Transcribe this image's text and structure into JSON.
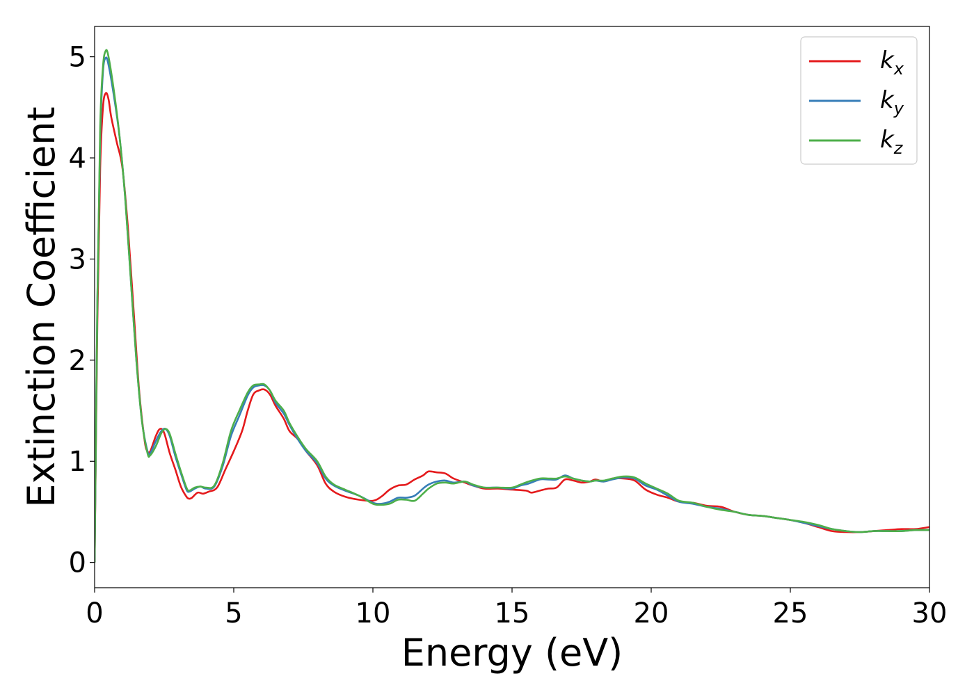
{
  "chart_data": {
    "type": "line",
    "xlabel": "Energy (eV)",
    "ylabel": "Extinction Coefficient",
    "xlim": [
      0,
      30
    ],
    "ylim": [
      -0.25,
      5.3
    ],
    "xticks": [
      0,
      5,
      10,
      15,
      20,
      25,
      30
    ],
    "yticks": [
      0,
      1,
      2,
      3,
      4,
      5
    ],
    "grid": false,
    "legend_position": "top-right",
    "series": [
      {
        "name": "k_x",
        "label_main": "k",
        "label_sub": "x",
        "color": "#e41a1c",
        "points": [
          [
            0,
            0
          ],
          [
            0.1,
            2.4
          ],
          [
            0.2,
            3.9
          ],
          [
            0.3,
            4.5
          ],
          [
            0.4,
            4.64
          ],
          [
            0.5,
            4.58
          ],
          [
            0.6,
            4.4
          ],
          [
            0.8,
            4.15
          ],
          [
            1.0,
            3.9
          ],
          [
            1.2,
            3.3
          ],
          [
            1.4,
            2.5
          ],
          [
            1.6,
            1.7
          ],
          [
            1.8,
            1.2
          ],
          [
            1.9,
            1.1
          ],
          [
            2.0,
            1.1
          ],
          [
            2.2,
            1.25
          ],
          [
            2.35,
            1.32
          ],
          [
            2.5,
            1.28
          ],
          [
            2.7,
            1.08
          ],
          [
            2.9,
            0.92
          ],
          [
            3.1,
            0.75
          ],
          [
            3.3,
            0.65
          ],
          [
            3.4,
            0.63
          ],
          [
            3.5,
            0.64
          ],
          [
            3.7,
            0.69
          ],
          [
            3.9,
            0.68
          ],
          [
            4.1,
            0.7
          ],
          [
            4.4,
            0.74
          ],
          [
            4.7,
            0.92
          ],
          [
            5.0,
            1.1
          ],
          [
            5.3,
            1.3
          ],
          [
            5.5,
            1.5
          ],
          [
            5.7,
            1.66
          ],
          [
            5.9,
            1.7
          ],
          [
            6.1,
            1.71
          ],
          [
            6.3,
            1.66
          ],
          [
            6.5,
            1.55
          ],
          [
            6.8,
            1.42
          ],
          [
            7.0,
            1.3
          ],
          [
            7.3,
            1.22
          ],
          [
            7.6,
            1.1
          ],
          [
            8.0,
            0.96
          ],
          [
            8.3,
            0.78
          ],
          [
            8.6,
            0.7
          ],
          [
            9.0,
            0.65
          ],
          [
            9.5,
            0.62
          ],
          [
            10.0,
            0.61
          ],
          [
            10.3,
            0.65
          ],
          [
            10.6,
            0.72
          ],
          [
            10.9,
            0.76
          ],
          [
            11.2,
            0.77
          ],
          [
            11.5,
            0.82
          ],
          [
            11.8,
            0.86
          ],
          [
            12.0,
            0.9
          ],
          [
            12.3,
            0.89
          ],
          [
            12.6,
            0.88
          ],
          [
            12.9,
            0.83
          ],
          [
            13.3,
            0.79
          ],
          [
            13.6,
            0.76
          ],
          [
            14.0,
            0.73
          ],
          [
            14.5,
            0.73
          ],
          [
            15.0,
            0.72
          ],
          [
            15.5,
            0.71
          ],
          [
            15.7,
            0.69
          ],
          [
            16.0,
            0.71
          ],
          [
            16.3,
            0.73
          ],
          [
            16.6,
            0.74
          ],
          [
            16.9,
            0.82
          ],
          [
            17.2,
            0.81
          ],
          [
            17.5,
            0.79
          ],
          [
            17.8,
            0.8
          ],
          [
            18.0,
            0.82
          ],
          [
            18.3,
            0.8
          ],
          [
            18.6,
            0.83
          ],
          [
            19.0,
            0.83
          ],
          [
            19.4,
            0.81
          ],
          [
            19.8,
            0.72
          ],
          [
            20.2,
            0.67
          ],
          [
            20.6,
            0.64
          ],
          [
            21.0,
            0.6
          ],
          [
            21.5,
            0.59
          ],
          [
            22.0,
            0.56
          ],
          [
            22.5,
            0.55
          ],
          [
            23.0,
            0.5
          ],
          [
            23.5,
            0.47
          ],
          [
            24.0,
            0.46
          ],
          [
            24.5,
            0.44
          ],
          [
            25.0,
            0.42
          ],
          [
            25.5,
            0.39
          ],
          [
            26.0,
            0.35
          ],
          [
            26.5,
            0.31
          ],
          [
            27.0,
            0.3
          ],
          [
            27.5,
            0.3
          ],
          [
            28.0,
            0.31
          ],
          [
            28.5,
            0.32
          ],
          [
            29.0,
            0.33
          ],
          [
            29.5,
            0.33
          ],
          [
            30.0,
            0.35
          ]
        ]
      },
      {
        "name": "k_y",
        "label_main": "k",
        "label_sub": "y",
        "color": "#377eb8",
        "points": [
          [
            0,
            0
          ],
          [
            0.1,
            2.6
          ],
          [
            0.2,
            4.2
          ],
          [
            0.3,
            4.85
          ],
          [
            0.4,
            4.99
          ],
          [
            0.5,
            4.92
          ],
          [
            0.7,
            4.6
          ],
          [
            0.9,
            4.2
          ],
          [
            1.1,
            3.6
          ],
          [
            1.3,
            2.8
          ],
          [
            1.5,
            2.0
          ],
          [
            1.7,
            1.4
          ],
          [
            1.9,
            1.1
          ],
          [
            2.0,
            1.08
          ],
          [
            2.2,
            1.2
          ],
          [
            2.4,
            1.3
          ],
          [
            2.55,
            1.32
          ],
          [
            2.7,
            1.25
          ],
          [
            2.9,
            1.05
          ],
          [
            3.1,
            0.88
          ],
          [
            3.3,
            0.72
          ],
          [
            3.4,
            0.7
          ],
          [
            3.6,
            0.73
          ],
          [
            3.8,
            0.75
          ],
          [
            4.0,
            0.73
          ],
          [
            4.3,
            0.75
          ],
          [
            4.6,
            0.95
          ],
          [
            4.9,
            1.25
          ],
          [
            5.2,
            1.45
          ],
          [
            5.5,
            1.65
          ],
          [
            5.7,
            1.73
          ],
          [
            5.9,
            1.75
          ],
          [
            6.1,
            1.75
          ],
          [
            6.3,
            1.7
          ],
          [
            6.5,
            1.58
          ],
          [
            6.8,
            1.47
          ],
          [
            7.0,
            1.36
          ],
          [
            7.3,
            1.22
          ],
          [
            7.6,
            1.1
          ],
          [
            8.0,
            0.98
          ],
          [
            8.3,
            0.83
          ],
          [
            8.6,
            0.76
          ],
          [
            9.0,
            0.71
          ],
          [
            9.5,
            0.66
          ],
          [
            10.0,
            0.59
          ],
          [
            10.3,
            0.58
          ],
          [
            10.6,
            0.6
          ],
          [
            10.9,
            0.64
          ],
          [
            11.2,
            0.64
          ],
          [
            11.5,
            0.66
          ],
          [
            11.8,
            0.73
          ],
          [
            12.0,
            0.77
          ],
          [
            12.3,
            0.8
          ],
          [
            12.6,
            0.81
          ],
          [
            12.9,
            0.79
          ],
          [
            13.3,
            0.8
          ],
          [
            13.6,
            0.76
          ],
          [
            14.0,
            0.74
          ],
          [
            14.5,
            0.74
          ],
          [
            15.0,
            0.73
          ],
          [
            15.3,
            0.76
          ],
          [
            15.6,
            0.78
          ],
          [
            16.0,
            0.82
          ],
          [
            16.3,
            0.82
          ],
          [
            16.6,
            0.82
          ],
          [
            16.9,
            0.86
          ],
          [
            17.2,
            0.83
          ],
          [
            17.5,
            0.81
          ],
          [
            17.8,
            0.8
          ],
          [
            18.0,
            0.81
          ],
          [
            18.3,
            0.8
          ],
          [
            18.6,
            0.82
          ],
          [
            19.0,
            0.84
          ],
          [
            19.4,
            0.83
          ],
          [
            19.8,
            0.76
          ],
          [
            20.2,
            0.72
          ],
          [
            20.6,
            0.66
          ],
          [
            21.0,
            0.6
          ],
          [
            21.5,
            0.58
          ],
          [
            22.0,
            0.55
          ],
          [
            22.5,
            0.53
          ],
          [
            23.0,
            0.5
          ],
          [
            23.5,
            0.47
          ],
          [
            24.0,
            0.46
          ],
          [
            24.5,
            0.44
          ],
          [
            25.0,
            0.42
          ],
          [
            25.5,
            0.39
          ],
          [
            26.0,
            0.36
          ],
          [
            26.5,
            0.33
          ],
          [
            27.0,
            0.31
          ],
          [
            27.5,
            0.3
          ],
          [
            28.0,
            0.31
          ],
          [
            28.5,
            0.31
          ],
          [
            29.0,
            0.31
          ],
          [
            29.5,
            0.32
          ],
          [
            30.0,
            0.32
          ]
        ]
      },
      {
        "name": "k_z",
        "label_main": "k",
        "label_sub": "z",
        "color": "#4daf4a",
        "points": [
          [
            0,
            0
          ],
          [
            0.1,
            2.6
          ],
          [
            0.2,
            4.3
          ],
          [
            0.3,
            4.9
          ],
          [
            0.4,
            5.06
          ],
          [
            0.5,
            5.0
          ],
          [
            0.7,
            4.65
          ],
          [
            0.9,
            4.2
          ],
          [
            1.1,
            3.6
          ],
          [
            1.3,
            2.8
          ],
          [
            1.5,
            2.0
          ],
          [
            1.7,
            1.4
          ],
          [
            1.9,
            1.08
          ],
          [
            2.0,
            1.06
          ],
          [
            2.2,
            1.15
          ],
          [
            2.4,
            1.28
          ],
          [
            2.55,
            1.32
          ],
          [
            2.7,
            1.27
          ],
          [
            2.9,
            1.08
          ],
          [
            3.1,
            0.9
          ],
          [
            3.3,
            0.74
          ],
          [
            3.4,
            0.71
          ],
          [
            3.6,
            0.74
          ],
          [
            3.8,
            0.75
          ],
          [
            4.0,
            0.74
          ],
          [
            4.3,
            0.76
          ],
          [
            4.6,
            0.98
          ],
          [
            4.9,
            1.3
          ],
          [
            5.2,
            1.5
          ],
          [
            5.5,
            1.68
          ],
          [
            5.7,
            1.75
          ],
          [
            5.9,
            1.76
          ],
          [
            6.1,
            1.76
          ],
          [
            6.3,
            1.7
          ],
          [
            6.5,
            1.6
          ],
          [
            6.8,
            1.5
          ],
          [
            7.0,
            1.38
          ],
          [
            7.3,
            1.24
          ],
          [
            7.6,
            1.12
          ],
          [
            8.0,
            1.0
          ],
          [
            8.3,
            0.85
          ],
          [
            8.6,
            0.77
          ],
          [
            9.0,
            0.72
          ],
          [
            9.5,
            0.66
          ],
          [
            10.0,
            0.58
          ],
          [
            10.3,
            0.57
          ],
          [
            10.6,
            0.58
          ],
          [
            10.9,
            0.62
          ],
          [
            11.2,
            0.62
          ],
          [
            11.5,
            0.61
          ],
          [
            11.8,
            0.68
          ],
          [
            12.0,
            0.73
          ],
          [
            12.3,
            0.78
          ],
          [
            12.6,
            0.79
          ],
          [
            12.9,
            0.78
          ],
          [
            13.3,
            0.8
          ],
          [
            13.6,
            0.77
          ],
          [
            14.0,
            0.74
          ],
          [
            14.5,
            0.74
          ],
          [
            15.0,
            0.74
          ],
          [
            15.3,
            0.77
          ],
          [
            15.6,
            0.8
          ],
          [
            16.0,
            0.83
          ],
          [
            16.3,
            0.83
          ],
          [
            16.6,
            0.83
          ],
          [
            16.9,
            0.85
          ],
          [
            17.2,
            0.83
          ],
          [
            17.5,
            0.81
          ],
          [
            17.8,
            0.8
          ],
          [
            18.0,
            0.81
          ],
          [
            18.3,
            0.81
          ],
          [
            18.6,
            0.83
          ],
          [
            19.0,
            0.85
          ],
          [
            19.4,
            0.84
          ],
          [
            19.8,
            0.78
          ],
          [
            20.2,
            0.73
          ],
          [
            20.6,
            0.68
          ],
          [
            21.0,
            0.61
          ],
          [
            21.5,
            0.59
          ],
          [
            22.0,
            0.55
          ],
          [
            22.5,
            0.52
          ],
          [
            23.0,
            0.5
          ],
          [
            23.5,
            0.47
          ],
          [
            24.0,
            0.46
          ],
          [
            24.5,
            0.44
          ],
          [
            25.0,
            0.42
          ],
          [
            25.5,
            0.4
          ],
          [
            26.0,
            0.37
          ],
          [
            26.5,
            0.33
          ],
          [
            27.0,
            0.31
          ],
          [
            27.5,
            0.3
          ],
          [
            28.0,
            0.31
          ],
          [
            28.5,
            0.31
          ],
          [
            29.0,
            0.31
          ],
          [
            29.5,
            0.32
          ],
          [
            30.0,
            0.32
          ]
        ]
      }
    ]
  }
}
